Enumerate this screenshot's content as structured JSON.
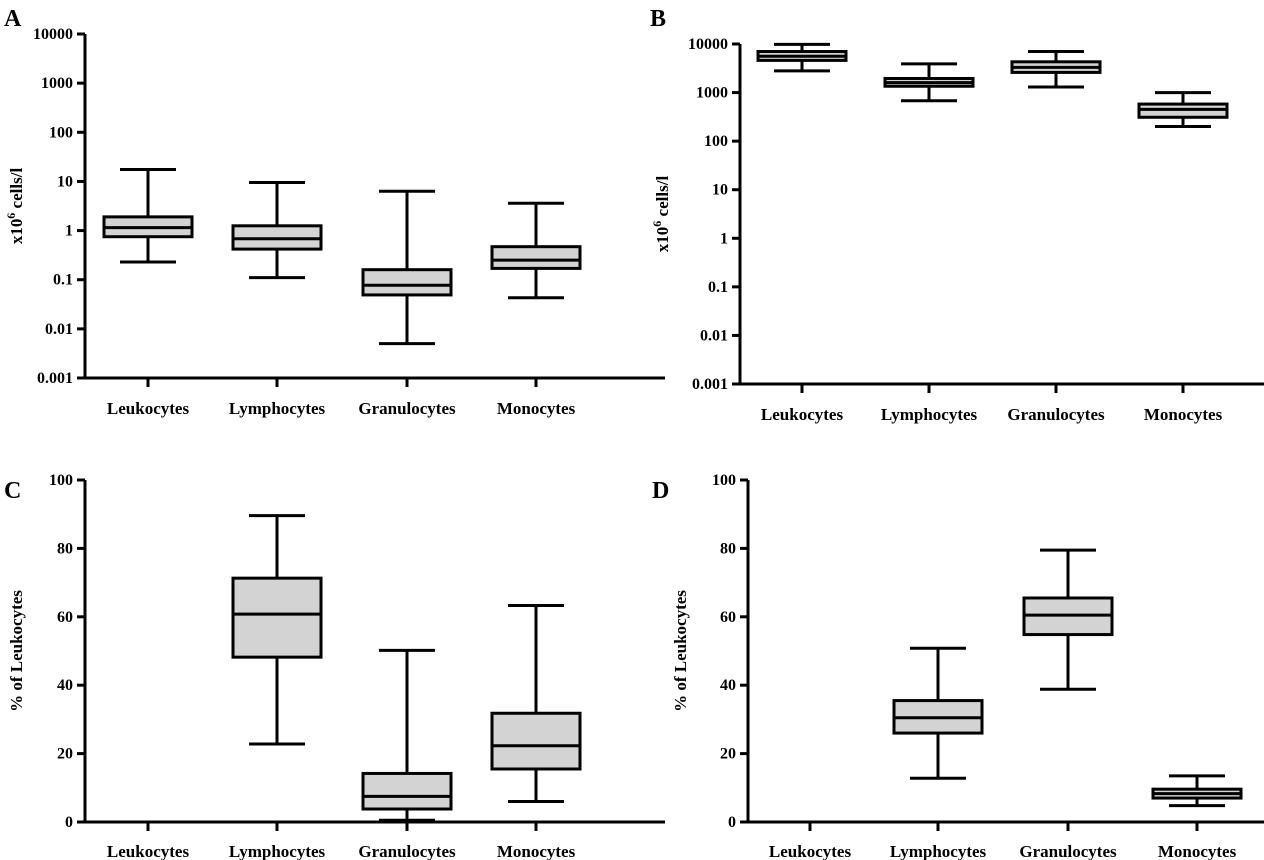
{
  "chart_data": [
    {
      "panel": "A",
      "type": "box",
      "scale": "log",
      "ylabel": "x10",
      "ylabel_sup": "6",
      "ylabel_suffix": " cells/l",
      "ylim": [
        0.001,
        10000
      ],
      "yticks": [
        0.001,
        0.01,
        0.1,
        1,
        10,
        100,
        1000,
        10000
      ],
      "ytick_labels": [
        "0.001",
        "0.01",
        "0.1",
        "1",
        "10",
        "100",
        "1000",
        "10000"
      ],
      "categories": [
        "Leukocytes",
        "Lymphocytes",
        "Granulocytes",
        "Monocytes"
      ],
      "boxes": [
        {
          "min": 0.23,
          "q1": 0.75,
          "median": 1.15,
          "q3": 1.9,
          "max": 17.5,
          "fill": "#d3d3d3"
        },
        {
          "min": 0.11,
          "q1": 0.42,
          "median": 0.68,
          "q3": 1.25,
          "max": 9.5,
          "fill": "#d3d3d3"
        },
        {
          "min": 0.005,
          "q1": 0.049,
          "median": 0.077,
          "q3": 0.16,
          "max": 6.3,
          "fill": "#d3d3d3"
        },
        {
          "min": 0.043,
          "q1": 0.17,
          "median": 0.25,
          "q3": 0.47,
          "max": 3.6,
          "fill": "#d3d3d3"
        }
      ]
    },
    {
      "panel": "B",
      "type": "box",
      "scale": "log",
      "ylabel": "x10",
      "ylabel_sup": "6",
      "ylabel_suffix": " cells/l",
      "ylim": [
        0.001,
        10000
      ],
      "yticks": [
        0.001,
        0.01,
        0.1,
        1,
        10,
        100,
        1000,
        10000
      ],
      "ytick_labels": [
        "0.001",
        "0.01",
        "0.1",
        "1",
        "10",
        "100",
        "1000",
        "10000"
      ],
      "categories": [
        "Leukocytes",
        "Lymphocytes",
        "Granulocytes",
        "Monocytes"
      ],
      "boxes": [
        {
          "min": 2800,
          "q1": 4600,
          "median": 5600,
          "q3": 7000,
          "max": 9800,
          "fill": "#d3d3d3"
        },
        {
          "min": 680,
          "q1": 1350,
          "median": 1600,
          "q3": 1950,
          "max": 3900,
          "fill": "#d3d3d3"
        },
        {
          "min": 1300,
          "q1": 2600,
          "median": 3300,
          "q3": 4300,
          "max": 7000,
          "fill": "#d3d3d3"
        },
        {
          "min": 200,
          "q1": 310,
          "median": 450,
          "q3": 580,
          "max": 1000,
          "fill": "#d3d3d3"
        }
      ]
    },
    {
      "panel": "C",
      "type": "box",
      "scale": "linear",
      "ylabel": "% of Leukocytes",
      "ylim": [
        0,
        100
      ],
      "yticks": [
        0,
        20,
        40,
        60,
        80,
        100
      ],
      "ytick_labels": [
        "0",
        "20",
        "40",
        "60",
        "80",
        "100"
      ],
      "categories": [
        "Leukocytes",
        "Lymphocytes",
        "Granulocytes",
        "Monocytes"
      ],
      "boxes": [
        null,
        {
          "min": 22.8,
          "q1": 48.2,
          "median": 60.8,
          "q3": 71.3,
          "max": 89.6,
          "fill": "#d3d3d3"
        },
        {
          "min": 0.5,
          "q1": 3.8,
          "median": 7.5,
          "q3": 14.2,
          "max": 50.2,
          "fill": "#d3d3d3"
        },
        {
          "min": 6.0,
          "q1": 15.5,
          "median": 22.3,
          "q3": 31.8,
          "max": 63.3,
          "fill": "#d3d3d3"
        }
      ]
    },
    {
      "panel": "D",
      "type": "box",
      "scale": "linear",
      "ylabel": "% of Leukocytes",
      "ylim": [
        0,
        100
      ],
      "yticks": [
        0,
        20,
        40,
        60,
        80,
        100
      ],
      "ytick_labels": [
        "0",
        "20",
        "40",
        "60",
        "80",
        "100"
      ],
      "categories": [
        "Leukocytes",
        "Lymphocytes",
        "Granulocytes",
        "Monocytes"
      ],
      "boxes": [
        null,
        {
          "min": 12.8,
          "q1": 26.0,
          "median": 30.5,
          "q3": 35.5,
          "max": 50.8,
          "fill": "#d3d3d3"
        },
        {
          "min": 38.8,
          "q1": 54.8,
          "median": 60.5,
          "q3": 65.5,
          "max": 79.5,
          "fill": "#d3d3d3"
        },
        {
          "min": 4.8,
          "q1": 7.0,
          "median": 8.3,
          "q3": 9.6,
          "max": 13.5,
          "fill": "#d3d3d3"
        }
      ]
    }
  ],
  "colors": {
    "box_fill": "#d3d3d3",
    "stroke": "#000000",
    "background": "#ffffff"
  }
}
